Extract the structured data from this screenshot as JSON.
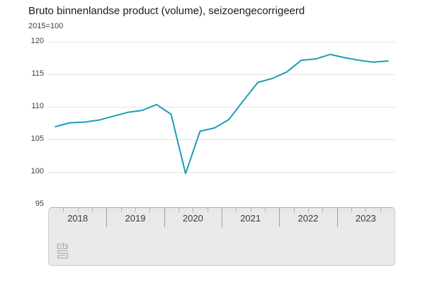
{
  "header": {
    "title": "Bruto binnenlandse product (volume), seizoengecorrigeerd",
    "subtitle": "2015=100"
  },
  "colors": {
    "line": "#1b9db8",
    "grid": "#e4e4e4",
    "panel_bg": "#e9e9e9",
    "quarter_tick": "#b5b5b5",
    "year_separator": "#9e9e9e",
    "axis_text": "#3f3f3f",
    "logo": "#a8a8a8"
  },
  "chart_data": {
    "type": "line",
    "title": "Bruto binnenlandse product (volume), seizoengecorrigeerd",
    "subtitle": "2015=100",
    "xlabel": "",
    "ylabel": "2015=100",
    "categories": [
      "2018 K1",
      "2018 K2",
      "2018 K3",
      "2018 K4",
      "2019 K1",
      "2019 K2",
      "2019 K3",
      "2019 K4",
      "2020 K1",
      "2020 K2",
      "2020 K3",
      "2020 K4",
      "2021 K1",
      "2021 K2",
      "2021 K3",
      "2021 K4",
      "2022 K1",
      "2022 K2",
      "2022 K3",
      "2022 K4",
      "2023 K1",
      "2023 K2",
      "2023 K3",
      "2023 K4"
    ],
    "values": [
      106.9,
      107.5,
      107.6,
      107.9,
      108.5,
      109.1,
      109.4,
      110.3,
      108.8,
      99.7,
      106.2,
      106.7,
      108.0,
      110.9,
      113.7,
      114.3,
      115.3,
      117.1,
      117.3,
      118.0,
      117.5,
      117.1,
      116.8,
      117.0
    ],
    "ylim": [
      95,
      120
    ],
    "yticks": [
      95,
      100,
      105,
      110,
      115,
      120
    ],
    "xaxis_years": [
      "2018",
      "2019",
      "2020",
      "2021",
      "2022",
      "2023"
    ],
    "grid": true,
    "legend": "none"
  }
}
